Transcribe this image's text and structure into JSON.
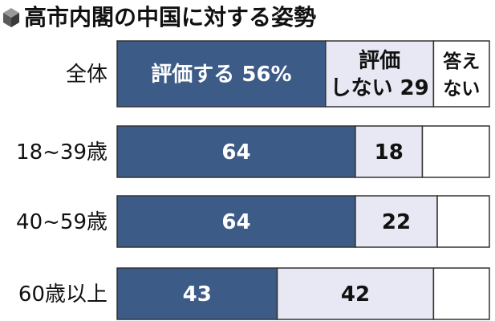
{
  "chart_data": {
    "type": "bar",
    "orientation": "horizontal",
    "stacked": true,
    "title": "高市内閣の中国に対する姿勢",
    "xlim": [
      0,
      100
    ],
    "categories": [
      "全体",
      "18~39歳",
      "40~59歳",
      "60歳以上"
    ],
    "series": [
      {
        "name": "評価する",
        "color": "#3d5b87",
        "values": [
          56,
          64,
          64,
          43
        ]
      },
      {
        "name": "評価しない",
        "color": "#e7e8f3",
        "values": [
          29,
          18,
          22,
          42
        ]
      },
      {
        "name": "答えない",
        "color": "#ffffff",
        "values": [
          15,
          18,
          14,
          15
        ]
      }
    ],
    "data_labels": [
      [
        {
          "lines": [
            "評価する 56%"
          ]
        },
        {
          "lines": [
            "評価",
            "しない 29"
          ]
        },
        {
          "lines": [
            "答え",
            "ない"
          ]
        }
      ],
      [
        {
          "lines": [
            "64"
          ]
        },
        {
          "lines": [
            "18"
          ]
        },
        {
          "lines": []
        }
      ],
      [
        {
          "lines": [
            "64"
          ]
        },
        {
          "lines": [
            "22"
          ]
        },
        {
          "lines": []
        }
      ],
      [
        {
          "lines": [
            "43"
          ]
        },
        {
          "lines": [
            "42"
          ]
        },
        {
          "lines": []
        }
      ]
    ],
    "legend": "none",
    "grid": false
  },
  "colors": {
    "border": "#333333",
    "dark_text": "#ffffff",
    "light_text": "#111111",
    "title_icon": "#5a5a5a"
  },
  "icons": {
    "title_icon": "cube-icon"
  }
}
